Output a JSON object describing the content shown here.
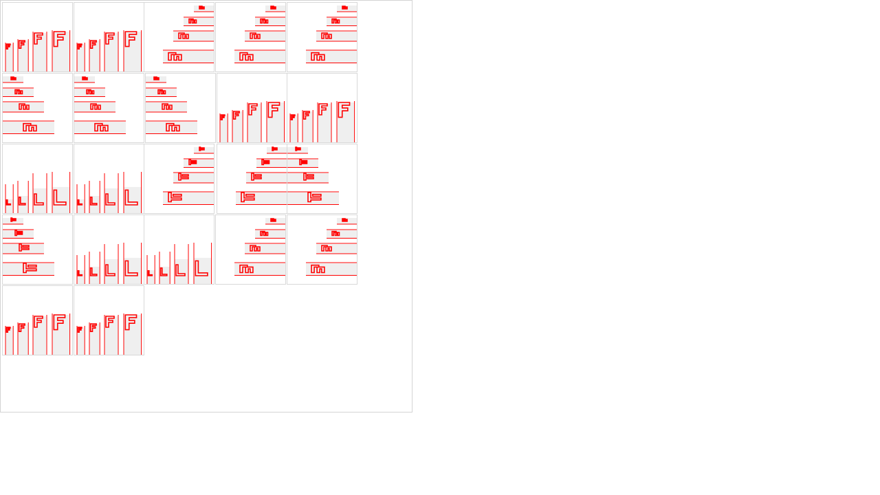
{
  "canvas": {
    "title": "",
    "test_glyph": "F",
    "colors": {
      "ink": "#ff0000",
      "shade": "#efefef",
      "border": "#d8d8d8",
      "background": "#ffffff"
    }
  },
  "tiles": [
    {
      "id": 1,
      "variant": "vertical-f"
    },
    {
      "id": 2,
      "variant": "vertical-f"
    },
    {
      "id": 3,
      "variant": "horizontal-rot90",
      "align": "right"
    },
    {
      "id": 4,
      "variant": "horizontal-rot90",
      "align": "right"
    },
    {
      "id": 5,
      "variant": "horizontal-rot90",
      "align": "right"
    },
    {
      "id": 6,
      "variant": "horizontal-rot90",
      "align": "left"
    },
    {
      "id": 7,
      "variant": "horizontal-rot90",
      "align": "left"
    },
    {
      "id": 8,
      "variant": "horizontal-rot90",
      "align": "left"
    },
    {
      "id": 9,
      "variant": "vertical-f"
    },
    {
      "id": 10,
      "variant": "vertical-f"
    },
    {
      "id": 11,
      "variant": "vertical-l"
    },
    {
      "id": 12,
      "variant": "vertical-l"
    },
    {
      "id": 13,
      "variant": "horizontal-rot270",
      "align": "right"
    },
    {
      "id": 14,
      "variant": "horizontal-rot270",
      "align": "right"
    },
    {
      "id": 15,
      "variant": "horizontal-rot270",
      "align": "left"
    },
    {
      "id": 16,
      "variant": "horizontal-rot270",
      "align": "left"
    },
    {
      "id": 17,
      "variant": "vertical-l"
    },
    {
      "id": 18,
      "variant": "vertical-l"
    },
    {
      "id": 19,
      "variant": "horizontal-rot90",
      "align": "right"
    },
    {
      "id": 20,
      "variant": "horizontal-rot90",
      "align": "right"
    },
    {
      "id": 21,
      "variant": "vertical-f"
    },
    {
      "id": 22,
      "variant": "vertical-f"
    }
  ]
}
